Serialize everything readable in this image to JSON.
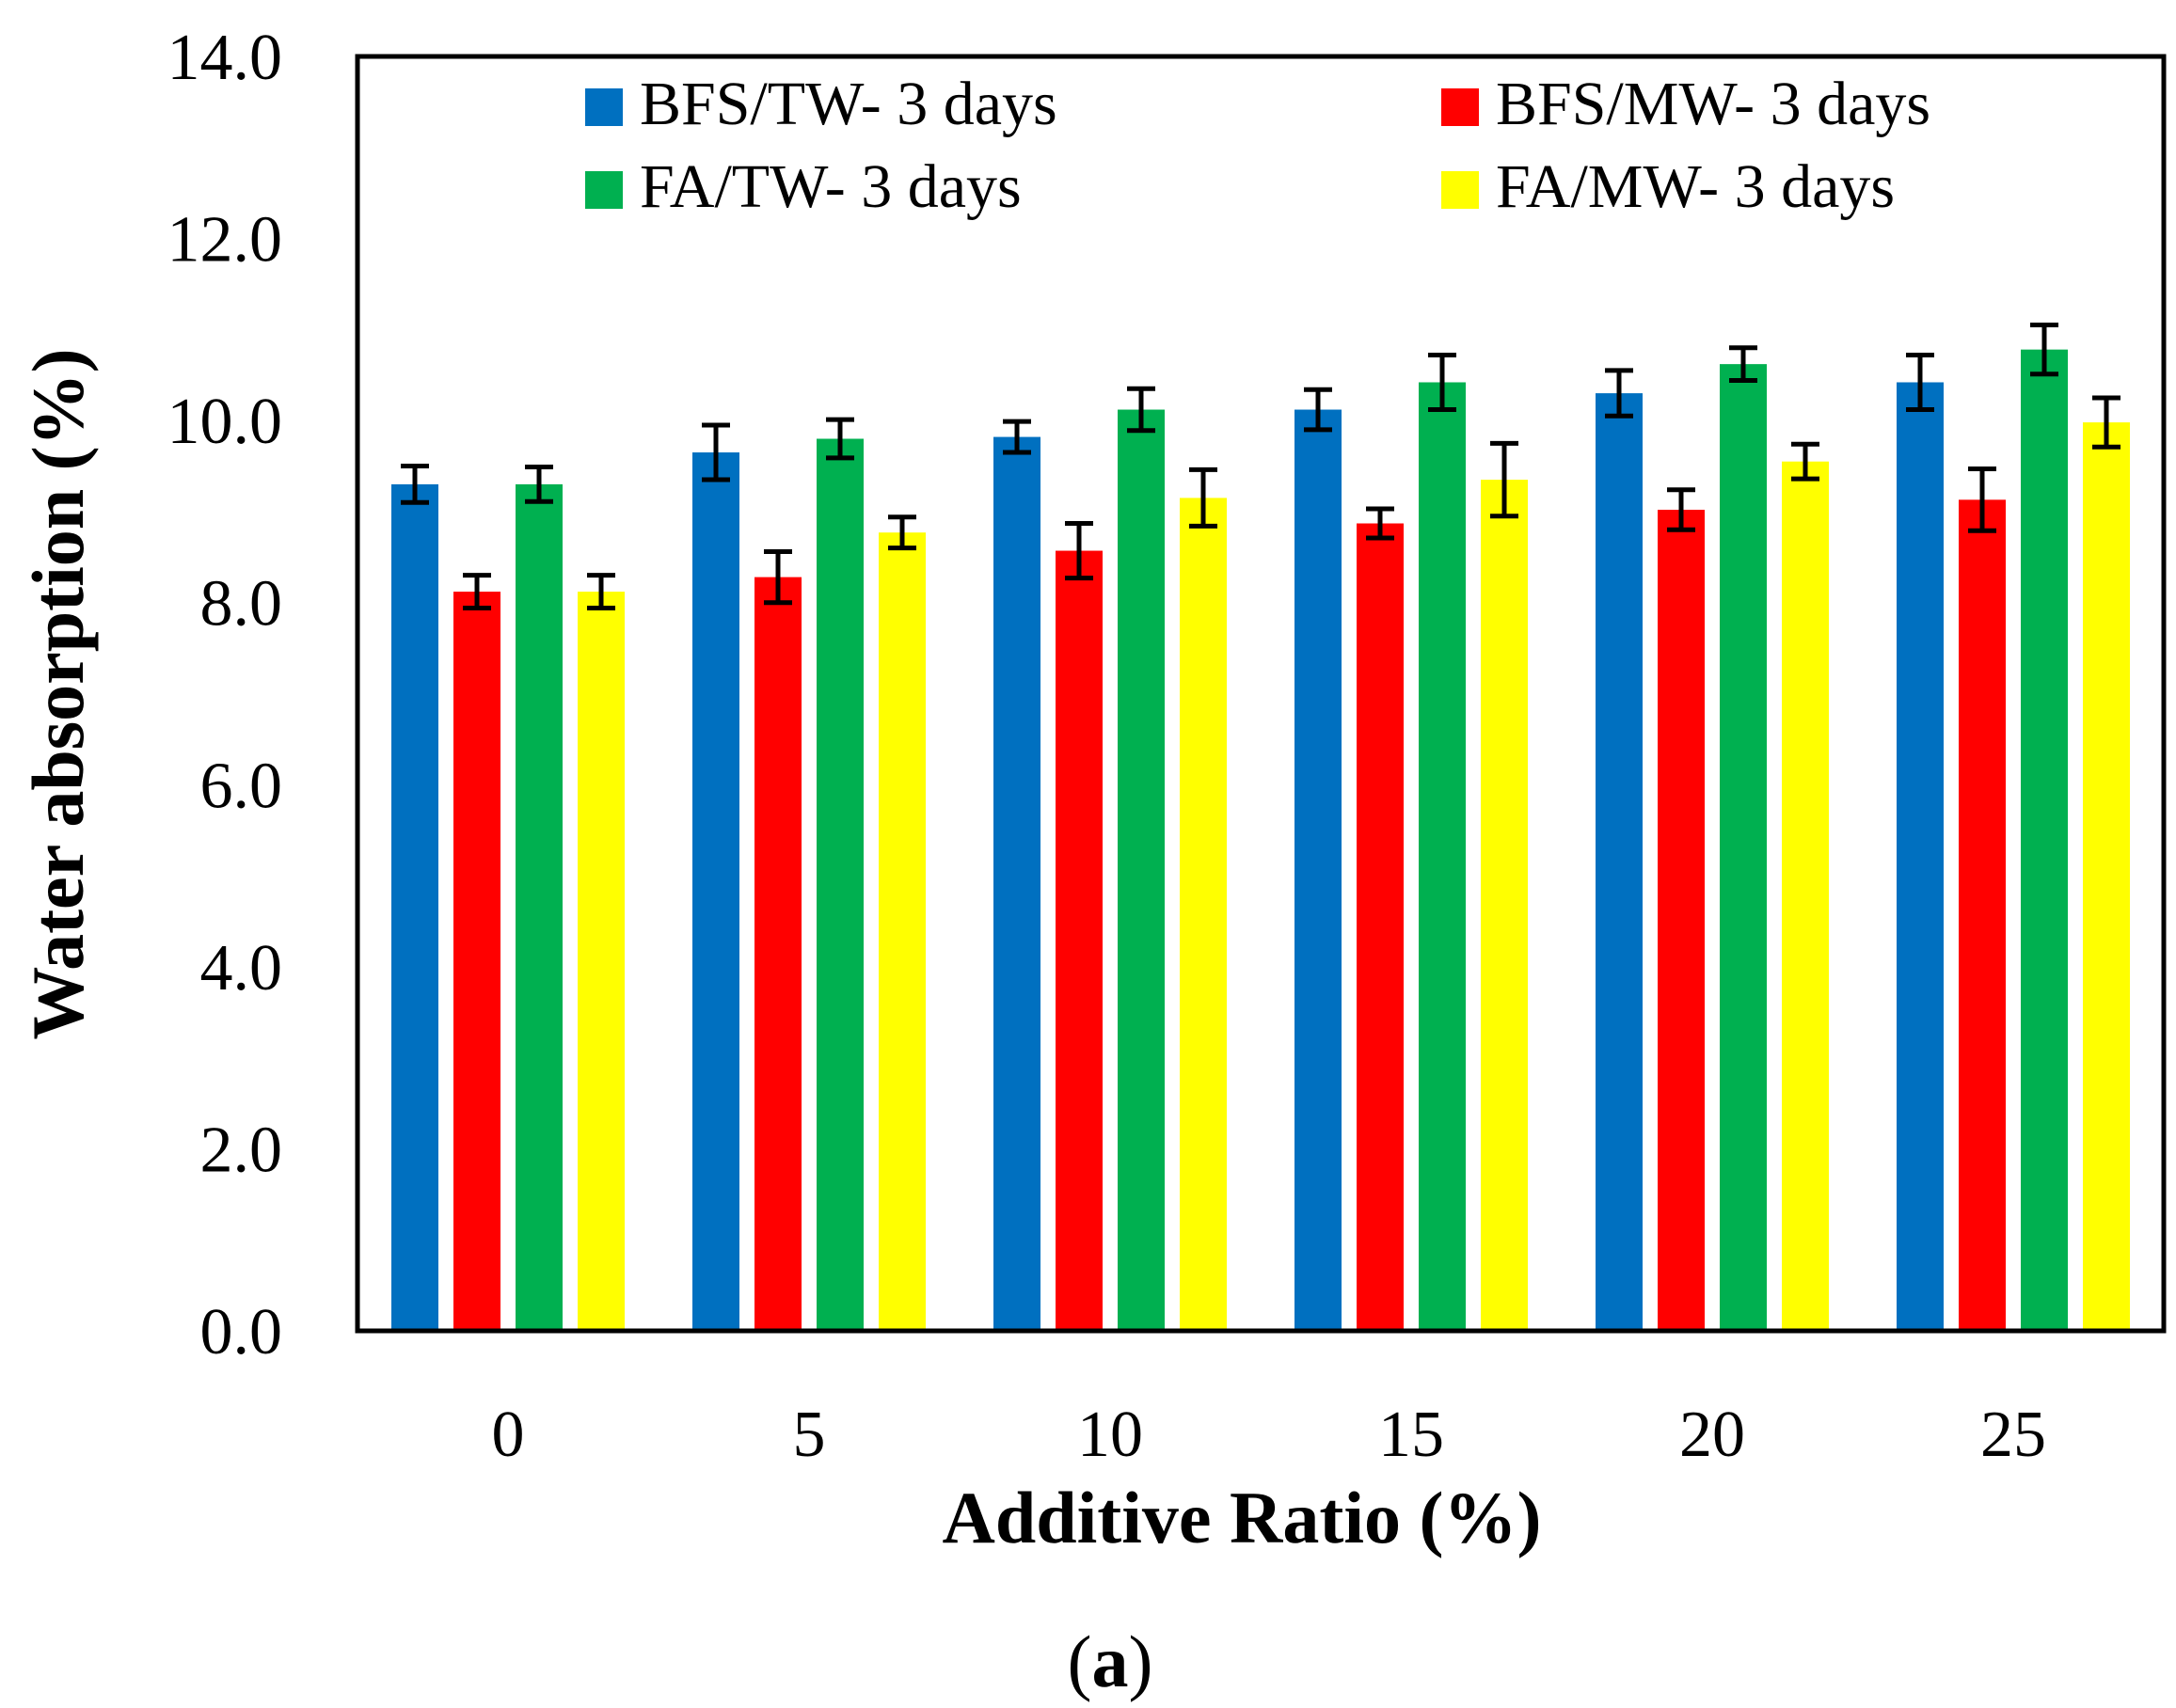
{
  "chart_data": {
    "type": "bar",
    "title": "",
    "xlabel": "Additive Ratio (%)",
    "ylabel": "Water absorption (%)",
    "ylim": [
      0,
      14
    ],
    "yticks": [
      "0.0",
      "2.0",
      "4.0",
      "6.0",
      "8.0",
      "10.0",
      "12.0",
      "14.0"
    ],
    "categories": [
      "0",
      "5",
      "10",
      "15",
      "20",
      "25"
    ],
    "legend_position": "top",
    "series": [
      {
        "name": "BFS/TW- 3 days",
        "color": "#0070C0",
        "values": [
          9.3,
          9.65,
          9.82,
          10.12,
          10.3,
          10.42
        ],
        "errors": [
          0.2,
          0.3,
          0.17,
          0.22,
          0.25,
          0.3
        ]
      },
      {
        "name": "BFS/MW- 3 days",
        "color": "#FF0000",
        "values": [
          8.12,
          8.28,
          8.57,
          8.87,
          9.02,
          9.13
        ],
        "errors": [
          0.18,
          0.28,
          0.3,
          0.16,
          0.22,
          0.34
        ]
      },
      {
        "name": "FA/TW- 3 days",
        "color": "#00B050",
        "values": [
          9.3,
          9.8,
          10.12,
          10.42,
          10.62,
          10.78
        ],
        "errors": [
          0.19,
          0.21,
          0.23,
          0.3,
          0.18,
          0.27
        ]
      },
      {
        "name": "FA/MW- 3 days",
        "color": "#FFFF00",
        "values": [
          8.12,
          8.77,
          9.15,
          9.35,
          9.55,
          9.98
        ],
        "errors": [
          0.18,
          0.17,
          0.31,
          0.4,
          0.19,
          0.27
        ]
      }
    ]
  },
  "caption": {
    "open": "(",
    "letter": "a",
    "close": ")"
  }
}
